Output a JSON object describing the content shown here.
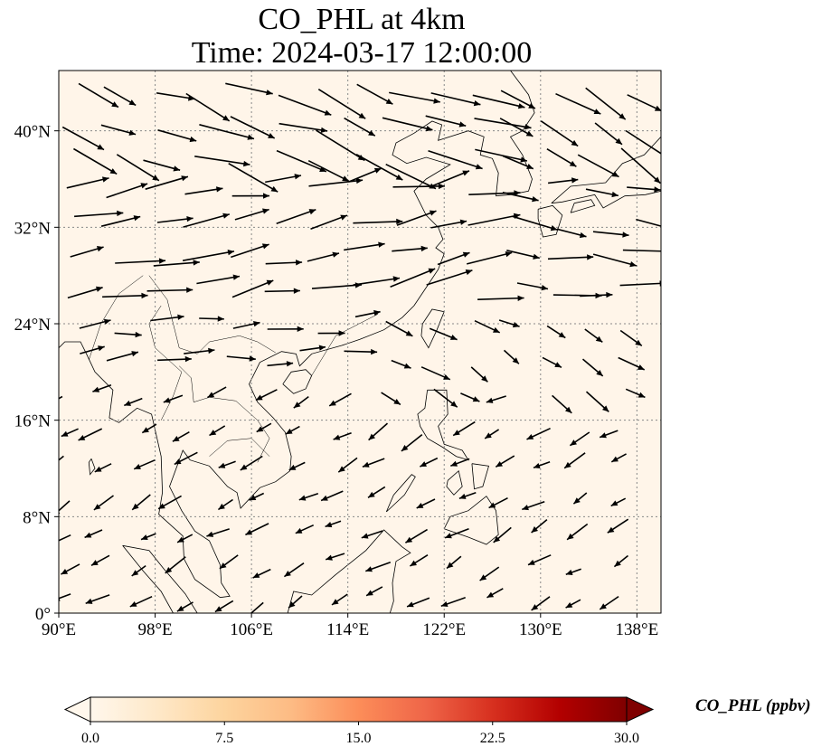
{
  "header": {
    "title_line1": "CO_PHL at 4km",
    "title_line2": "Time: 2024-03-17 12:00:00"
  },
  "map": {
    "type": "wind_vector_field_over_concentration_map",
    "extent_lon": [
      90,
      140
    ],
    "extent_lat": [
      0,
      45
    ],
    "lon_ticks": [
      "90°E",
      "98°E",
      "106°E",
      "114°E",
      "122°E",
      "130°E",
      "138°E"
    ],
    "lat_ticks": [
      "0°",
      "8°N",
      "16°N",
      "24°N",
      "32°N",
      "40°N"
    ],
    "lon_values": [
      90,
      98,
      106,
      114,
      122,
      130,
      138
    ],
    "lat_values": [
      0,
      8,
      16,
      24,
      32,
      40
    ],
    "grid": "dotted",
    "background_color": "#fff5e9",
    "coast_color": "#000000"
  },
  "colorbar": {
    "label": "CO_PHL (ppbv)",
    "min": 0.0,
    "max": 30.0,
    "ticks": [
      "0.0",
      "7.5",
      "15.0",
      "22.5",
      "30.0"
    ],
    "tick_values": [
      0,
      7.5,
      15,
      22.5,
      30
    ],
    "colormap": "OrRd",
    "extend": "both",
    "colors": [
      "#fff7ec",
      "#fee8c8",
      "#fdd49e",
      "#fdbb84",
      "#fc8d59",
      "#ef6548",
      "#d7301f",
      "#b30000",
      "#7f0000"
    ]
  },
  "chart_data": {
    "type": "quiver",
    "variable": "CO_PHL",
    "units": "ppbv",
    "height": "4km",
    "time": "2024-03-17 12:00:00",
    "vectors_note": "approx. wind direction (deg toward, 0=east, ccw) and relative length by region",
    "wind_regions": [
      {
        "lon": [
          90,
          125
        ],
        "lat": [
          36,
          45
        ],
        "dir_deg": -20,
        "rel_len": 1.0
      },
      {
        "lon": [
          125,
          140
        ],
        "lat": [
          36,
          45
        ],
        "dir_deg": -35,
        "rel_len": 0.9
      },
      {
        "lon": [
          90,
          125
        ],
        "lat": [
          26,
          36
        ],
        "dir_deg": 12,
        "rel_len": 0.9
      },
      {
        "lon": [
          125,
          140
        ],
        "lat": [
          26,
          36
        ],
        "dir_deg": -5,
        "rel_len": 0.8
      },
      {
        "lon": [
          90,
          115
        ],
        "lat": [
          20,
          26
        ],
        "dir_deg": 5,
        "rel_len": 0.5
      },
      {
        "lon": [
          115,
          140
        ],
        "lat": [
          18,
          26
        ],
        "dir_deg": -30,
        "rel_len": 0.4
      },
      {
        "lon": [
          90,
          140
        ],
        "lat": [
          0,
          18
        ],
        "dir_deg": -150,
        "rel_len": 0.25
      }
    ]
  }
}
